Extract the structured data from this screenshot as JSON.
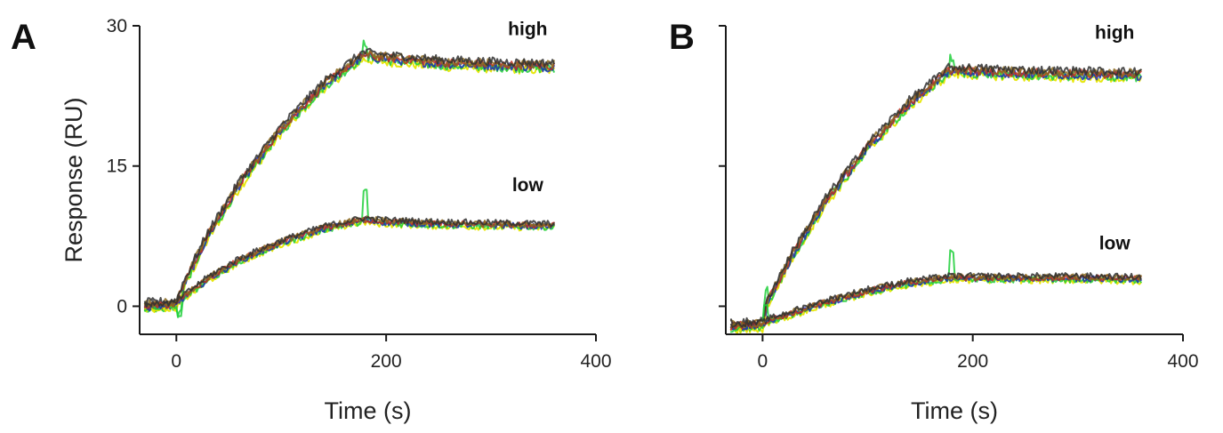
{
  "chart_data": [
    {
      "panel": "A",
      "type": "line",
      "xlabel": "Time (s)",
      "ylabel": "Response (RU)",
      "xlim": [
        -35,
        400
      ],
      "ylim": [
        -3,
        30
      ],
      "xticks": [
        0,
        200,
        400
      ],
      "yticks": [
        0,
        15,
        30
      ],
      "ytick_labels": [
        "0",
        "15",
        "30"
      ],
      "curve_labels": [
        {
          "text": "high",
          "x": 335,
          "y": 29.0
        },
        {
          "text": "low",
          "x": 335,
          "y": 12.3
        }
      ],
      "colors": [
        "#e6e600",
        "#1fcf3a",
        "#1a2fb0",
        "#c03020",
        "#8a6a20",
        "#303030"
      ],
      "groups": [
        {
          "name": "high",
          "x": [
            -30,
            0,
            5,
            30,
            60,
            100,
            140,
            178,
            200,
            250,
            300,
            360
          ],
          "y": [
            0,
            0.2,
            1.8,
            7.5,
            13.0,
            18.9,
            23.6,
            26.8,
            26.5,
            26.0,
            25.8,
            25.6
          ]
        },
        {
          "name": "low",
          "x": [
            -30,
            0,
            5,
            30,
            60,
            100,
            140,
            178,
            200,
            250,
            300,
            360
          ],
          "y": [
            0,
            0.1,
            0.8,
            2.9,
            4.9,
            6.8,
            8.3,
            9.2,
            9.0,
            8.8,
            8.7,
            8.6
          ]
        }
      ]
    },
    {
      "panel": "B",
      "type": "line",
      "xlabel": "Time (s)",
      "ylabel": "",
      "xlim": [
        -35,
        400
      ],
      "ylim": [
        -3,
        30
      ],
      "xticks": [
        0,
        200,
        400
      ],
      "yticks": [
        0,
        15,
        30
      ],
      "ytick_labels": [
        "",
        "",
        ""
      ],
      "curve_labels": [
        {
          "text": "high",
          "x": 335,
          "y": 28.6
        },
        {
          "text": "low",
          "x": 335,
          "y": 6.1
        }
      ],
      "colors": [
        "#e6e600",
        "#1fcf3a",
        "#1a2fb0",
        "#c03020",
        "#8a6a20",
        "#303030"
      ],
      "groups": [
        {
          "name": "high",
          "x": [
            -30,
            0,
            5,
            30,
            60,
            100,
            140,
            178,
            200,
            250,
            300,
            360
          ],
          "y": [
            -2.2,
            -2.0,
            0.5,
            5.8,
            11.2,
            17.0,
            21.7,
            25.2,
            25.1,
            24.9,
            24.8,
            24.7
          ]
        },
        {
          "name": "low",
          "x": [
            -30,
            0,
            5,
            30,
            60,
            100,
            140,
            178,
            200,
            250,
            300,
            360
          ],
          "y": [
            -2.2,
            -2.0,
            -1.6,
            -0.7,
            0.4,
            1.6,
            2.5,
            3.0,
            3.0,
            3.0,
            3.0,
            2.9
          ]
        }
      ]
    }
  ]
}
